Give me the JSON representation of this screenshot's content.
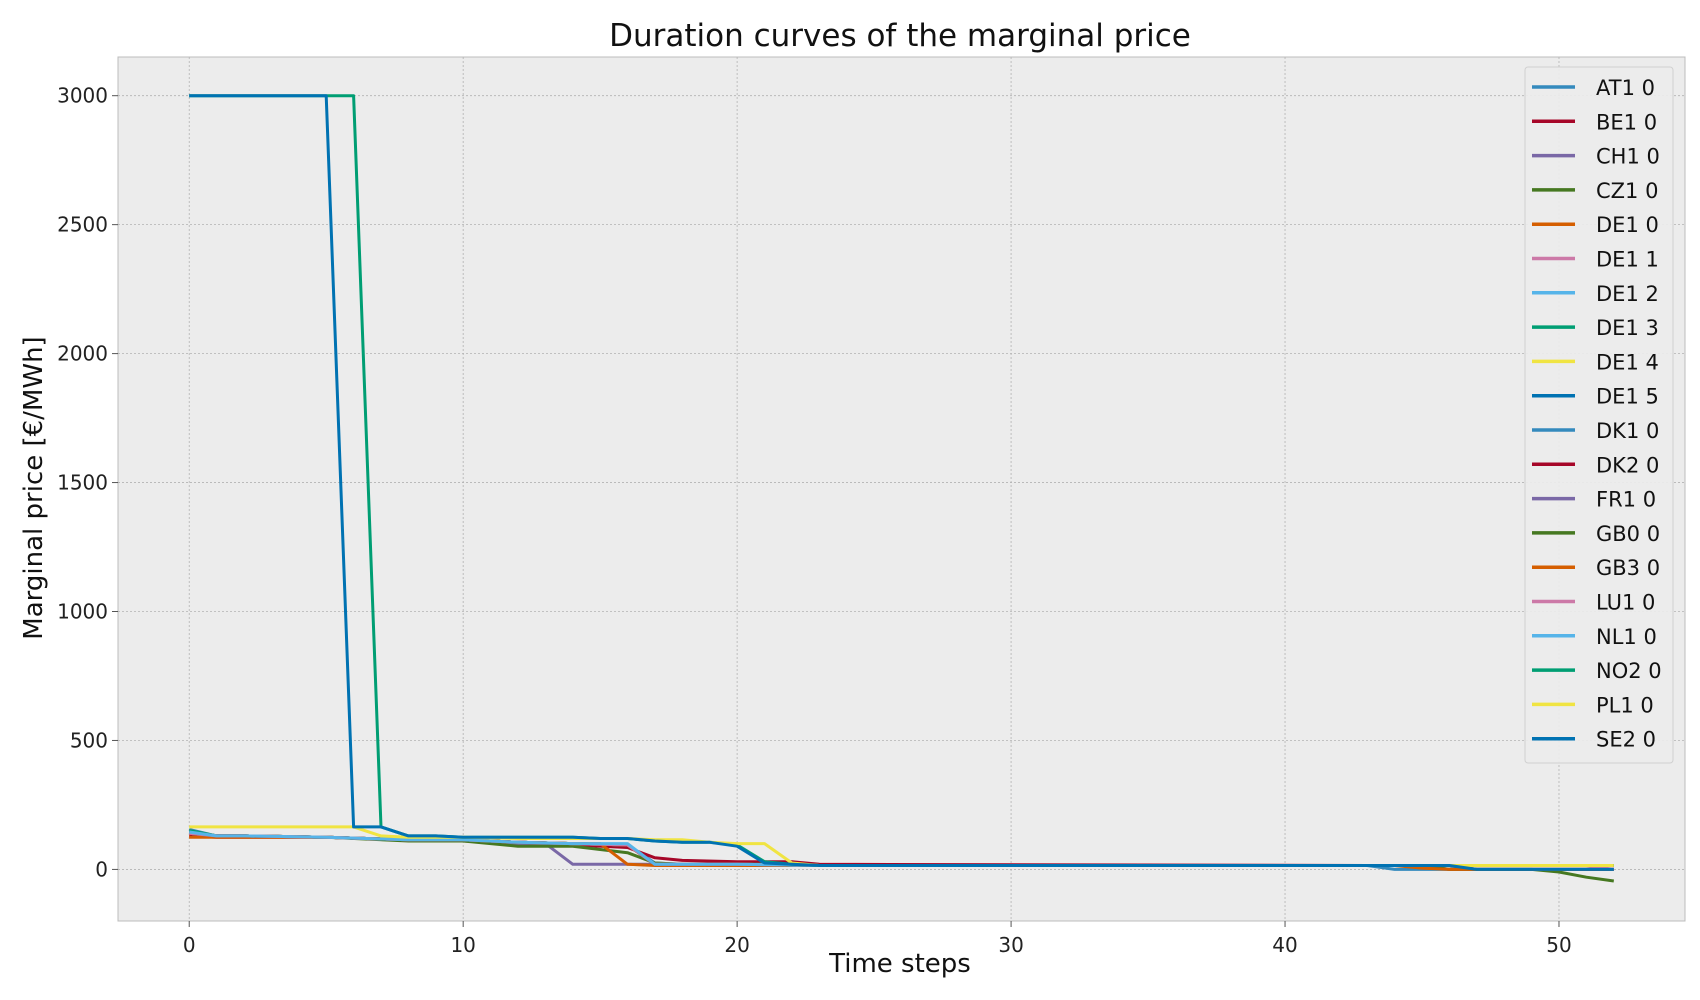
{
  "chart_data": {
    "type": "line",
    "title": "Duration curves of the marginal price",
    "xlabel": "Time steps",
    "ylabel": "Marginal price [€/MWh]",
    "xlim": [
      -2.6,
      54.6
    ],
    "ylim": [
      -200,
      3150
    ],
    "xticks": [
      0,
      10,
      20,
      30,
      40,
      50
    ],
    "yticks": [
      0,
      500,
      1000,
      1500,
      2000,
      2500,
      3000
    ],
    "grid": true,
    "legend_position": "top-right",
    "background": "#ececec",
    "series": [
      {
        "name": "AT1 0",
        "color": "#348abd",
        "x": [
          0,
          1,
          2,
          5,
          8,
          10,
          12,
          14,
          16,
          17,
          18,
          20,
          22,
          23,
          43,
          44,
          46,
          47,
          52
        ],
        "y": [
          155,
          130,
          130,
          125,
          115,
          115,
          105,
          100,
          95,
          25,
          20,
          20,
          18,
          15,
          15,
          0,
          0,
          0,
          0
        ]
      },
      {
        "name": "BE1 0",
        "color": "#a60628",
        "x": [
          0,
          1,
          2,
          5,
          8,
          10,
          12,
          14,
          16,
          17,
          18,
          20,
          21,
          22,
          23,
          43,
          46,
          47,
          52
        ],
        "y": [
          130,
          125,
          125,
          125,
          115,
          110,
          105,
          95,
          85,
          45,
          35,
          30,
          30,
          30,
          20,
          15,
          15,
          0,
          0
        ]
      },
      {
        "name": "CH1 0",
        "color": "#7a68a6",
        "x": [
          0,
          1,
          2,
          5,
          8,
          10,
          12,
          13,
          14,
          16,
          18,
          22,
          23,
          45,
          46,
          52
        ],
        "y": [
          140,
          130,
          130,
          125,
          115,
          115,
          100,
          100,
          20,
          20,
          20,
          20,
          15,
          15,
          0,
          0
        ]
      },
      {
        "name": "CZ1 0",
        "color": "#467821",
        "x": [
          0,
          1,
          2,
          5,
          8,
          10,
          12,
          14,
          16,
          17,
          18,
          22,
          23,
          45,
          46,
          47,
          49,
          50,
          51,
          52
        ],
        "y": [
          150,
          130,
          130,
          125,
          110,
          110,
          90,
          90,
          65,
          25,
          20,
          20,
          15,
          15,
          0,
          0,
          0,
          -10,
          -30,
          -45
        ]
      },
      {
        "name": "DE1 0",
        "color": "#d55e00",
        "x": [
          0,
          1,
          2,
          5,
          8,
          10,
          12,
          14,
          15,
          16,
          17,
          20,
          22,
          23,
          44,
          45,
          46,
          52
        ],
        "y": [
          125,
          125,
          125,
          125,
          115,
          115,
          105,
          100,
          100,
          20,
          15,
          15,
          15,
          15,
          15,
          5,
          0,
          0
        ]
      },
      {
        "name": "DE1 1",
        "color": "#cc79a7",
        "x": [
          0,
          1,
          2,
          5,
          8,
          10,
          12,
          14,
          16,
          17,
          20,
          23,
          45,
          52
        ],
        "y": [
          140,
          130,
          130,
          125,
          115,
          115,
          105,
          100,
          95,
          20,
          20,
          15,
          15,
          15
        ]
      },
      {
        "name": "DE1 2",
        "color": "#56b4e9",
        "x": [
          0,
          1,
          2,
          5,
          8,
          10,
          12,
          14,
          16,
          17,
          20,
          23,
          45,
          52
        ],
        "y": [
          145,
          130,
          130,
          125,
          115,
          115,
          105,
          100,
          95,
          20,
          20,
          15,
          15,
          15
        ]
      },
      {
        "name": "DE1 3",
        "color": "#009e73",
        "x": [
          0,
          1,
          2,
          5,
          8,
          10,
          12,
          14,
          16,
          17,
          20,
          23,
          45,
          52
        ],
        "y": [
          150,
          130,
          130,
          125,
          115,
          115,
          105,
          100,
          95,
          20,
          20,
          15,
          15,
          15
        ]
      },
      {
        "name": "DE1 4",
        "color": "#f0e442",
        "x": [
          0,
          1,
          2,
          5,
          8,
          10,
          12,
          14,
          16,
          17,
          20,
          23,
          45,
          52
        ],
        "y": [
          140,
          130,
          130,
          125,
          115,
          115,
          105,
          100,
          95,
          20,
          20,
          15,
          15,
          15
        ]
      },
      {
        "name": "DE1 5",
        "color": "#0072b2",
        "x": [
          0,
          1,
          2,
          5,
          8,
          10,
          12,
          14,
          16,
          17,
          20,
          23,
          45,
          52
        ],
        "y": [
          140,
          130,
          130,
          125,
          115,
          115,
          105,
          100,
          95,
          20,
          20,
          15,
          15,
          15
        ]
      },
      {
        "name": "DK1 0",
        "color": "#348abd",
        "x": [
          0,
          1,
          2,
          5,
          8,
          10,
          12,
          14,
          16,
          17,
          20,
          23,
          45,
          52
        ],
        "y": [
          140,
          130,
          130,
          125,
          115,
          115,
          105,
          100,
          95,
          20,
          20,
          15,
          15,
          15
        ]
      },
      {
        "name": "DK2 0",
        "color": "#a60628",
        "x": [
          0,
          1,
          2,
          5,
          8,
          10,
          12,
          14,
          16,
          17,
          20,
          23,
          45,
          52
        ],
        "y": [
          140,
          130,
          130,
          125,
          115,
          115,
          105,
          100,
          95,
          20,
          20,
          15,
          15,
          15
        ]
      },
      {
        "name": "FR1 0",
        "color": "#7a68a6",
        "x": [
          0,
          1,
          2,
          5,
          8,
          10,
          12,
          14,
          16,
          17,
          20,
          23,
          45,
          52
        ],
        "y": [
          140,
          130,
          130,
          125,
          115,
          115,
          105,
          100,
          95,
          20,
          20,
          15,
          15,
          15
        ]
      },
      {
        "name": "GB0 0",
        "color": "#467821",
        "x": [
          0,
          1,
          2,
          5,
          8,
          10,
          12,
          14,
          16,
          17,
          20,
          23,
          45,
          52
        ],
        "y": [
          140,
          130,
          130,
          125,
          115,
          115,
          105,
          100,
          95,
          20,
          20,
          15,
          15,
          15
        ]
      },
      {
        "name": "GB3 0",
        "color": "#d55e00",
        "x": [
          0,
          1,
          2,
          5,
          8,
          10,
          12,
          14,
          16,
          17,
          20,
          23,
          45,
          52
        ],
        "y": [
          140,
          130,
          130,
          125,
          115,
          115,
          105,
          100,
          95,
          20,
          20,
          15,
          15,
          15
        ]
      },
      {
        "name": "LU1 0",
        "color": "#cc79a7",
        "x": [
          0,
          1,
          2,
          5,
          8,
          10,
          12,
          14,
          16,
          17,
          20,
          23,
          45,
          51,
          52
        ],
        "y": [
          140,
          130,
          130,
          125,
          115,
          115,
          105,
          100,
          95,
          20,
          20,
          15,
          15,
          15,
          0
        ]
      },
      {
        "name": "NL1 0",
        "color": "#56b4e9",
        "x": [
          0,
          1,
          2,
          5,
          8,
          10,
          12,
          14,
          16,
          17,
          20,
          23,
          45,
          52
        ],
        "y": [
          145,
          130,
          130,
          125,
          115,
          115,
          105,
          100,
          100,
          20,
          20,
          15,
          15,
          15
        ]
      },
      {
        "name": "NO2 0",
        "color": "#009e73",
        "x": [
          0,
          1,
          2,
          3,
          4,
          5,
          6,
          7,
          8,
          9,
          10,
          11,
          12,
          13,
          14,
          15,
          16,
          17,
          18,
          19,
          20,
          21,
          22,
          23,
          45,
          46,
          52
        ],
        "y": [
          3000,
          3000,
          3000,
          3000,
          3000,
          3000,
          3000,
          165,
          130,
          130,
          125,
          125,
          125,
          125,
          125,
          120,
          120,
          110,
          105,
          105,
          95,
          30,
          20,
          15,
          15,
          15,
          15
        ]
      },
      {
        "name": "PL1 0",
        "color": "#f0e442",
        "x": [
          0,
          1,
          2,
          3,
          4,
          5,
          6,
          7,
          8,
          10,
          12,
          14,
          15,
          16,
          17,
          18,
          19,
          20,
          21,
          22,
          23,
          45,
          52
        ],
        "y": [
          165,
          165,
          165,
          165,
          165,
          165,
          165,
          130,
          125,
          125,
          120,
          120,
          120,
          120,
          115,
          115,
          105,
          100,
          100,
          25,
          15,
          15,
          15
        ]
      },
      {
        "name": "SE2 0",
        "color": "#0072b2",
        "x": [
          0,
          1,
          2,
          3,
          4,
          5,
          6,
          7,
          8,
          9,
          10,
          11,
          12,
          13,
          14,
          15,
          16,
          17,
          18,
          19,
          20,
          21,
          22,
          23,
          45,
          46,
          47,
          52
        ],
        "y": [
          3000,
          3000,
          3000,
          3000,
          3000,
          3000,
          165,
          165,
          130,
          130,
          125,
          125,
          125,
          125,
          125,
          120,
          120,
          110,
          105,
          105,
          90,
          25,
          20,
          15,
          15,
          15,
          0,
          0
        ]
      }
    ]
  }
}
